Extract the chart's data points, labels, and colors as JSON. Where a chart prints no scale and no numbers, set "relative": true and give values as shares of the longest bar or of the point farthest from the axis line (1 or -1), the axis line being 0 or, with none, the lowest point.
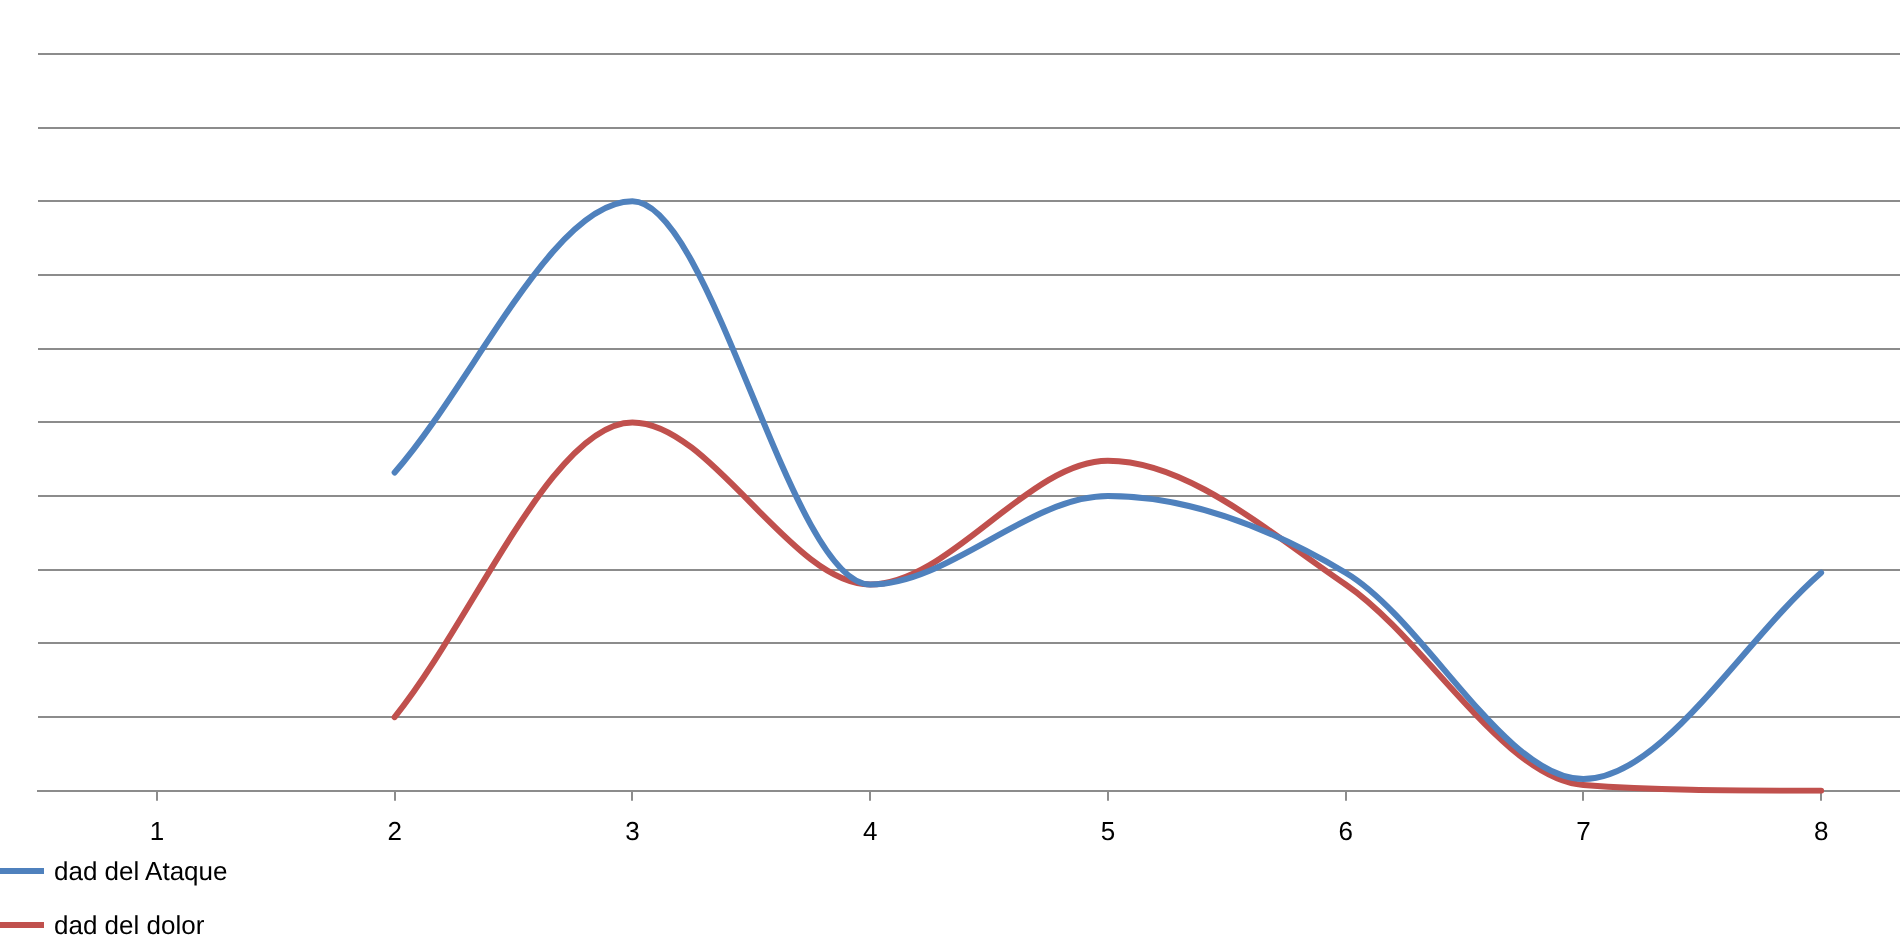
{
  "chart_data": {
    "type": "line",
    "relative": true,
    "categories": [
      "1",
      "2",
      "3",
      "4",
      "5",
      "6",
      "7",
      "8"
    ],
    "series": [
      {
        "name": "dad del Ataque",
        "color": "#4f81bd",
        "values": [
          null,
          0.54,
          1,
          0.35,
          0.5,
          0.37,
          0.02,
          0.37
        ]
      },
      {
        "name": "dad del dolor",
        "color": "#c0504d",
        "values": [
          null,
          0.125,
          0.625,
          0.35,
          0.56,
          0.35,
          0.01,
          0
        ]
      }
    ],
    "grid": "y",
    "legend": "bottom left",
    "marker": "none"
  }
}
